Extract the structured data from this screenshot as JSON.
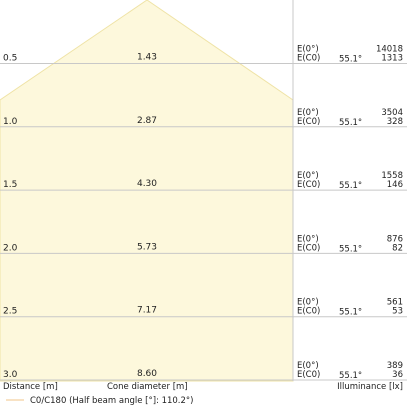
{
  "chart_data": {
    "type": "table",
    "title": "",
    "distance_unit": "m",
    "beam_angle": "55.1°",
    "rows": [
      {
        "distance": "0.5",
        "diameter": "1.43",
        "e0_label": "E(0°)",
        "ec0_label": "E(C0)",
        "angle": "55.1°",
        "e0": "14018",
        "ec0": "1313"
      },
      {
        "distance": "1.0",
        "diameter": "2.87",
        "e0_label": "E(0°)",
        "ec0_label": "E(C0)",
        "angle": "55.1°",
        "e0": "3504",
        "ec0": "328"
      },
      {
        "distance": "1.5",
        "diameter": "4.30",
        "e0_label": "E(0°)",
        "ec0_label": "E(C0)",
        "angle": "55.1°",
        "e0": "1558",
        "ec0": "146"
      },
      {
        "distance": "2.0",
        "diameter": "5.73",
        "e0_label": "E(0°)",
        "ec0_label": "E(C0)",
        "angle": "55.1°",
        "e0": "876",
        "ec0": "82"
      },
      {
        "distance": "2.5",
        "diameter": "7.17",
        "e0_label": "E(0°)",
        "ec0_label": "E(C0)",
        "angle": "55.1°",
        "e0": "561",
        "ec0": "53"
      },
      {
        "distance": "3.0",
        "diameter": "8.60",
        "e0_label": "E(0°)",
        "ec0_label": "E(C0)",
        "angle": "55.1°",
        "e0": "389",
        "ec0": "36"
      }
    ],
    "footer": {
      "distance_label": "Distance [m]",
      "diameter_label": "Cone diameter [m]",
      "illuminance_label": "Illuminance [lx]"
    },
    "legend": {
      "label": "C0/C180 (Half beam angle [°]: 110.2°)",
      "color": "#f5d9b0"
    },
    "colors": {
      "cone_fill": "#fdf8dc",
      "cone_stroke": "#efe3a6",
      "grid": "#c8c8c8",
      "text": "#222222"
    }
  }
}
